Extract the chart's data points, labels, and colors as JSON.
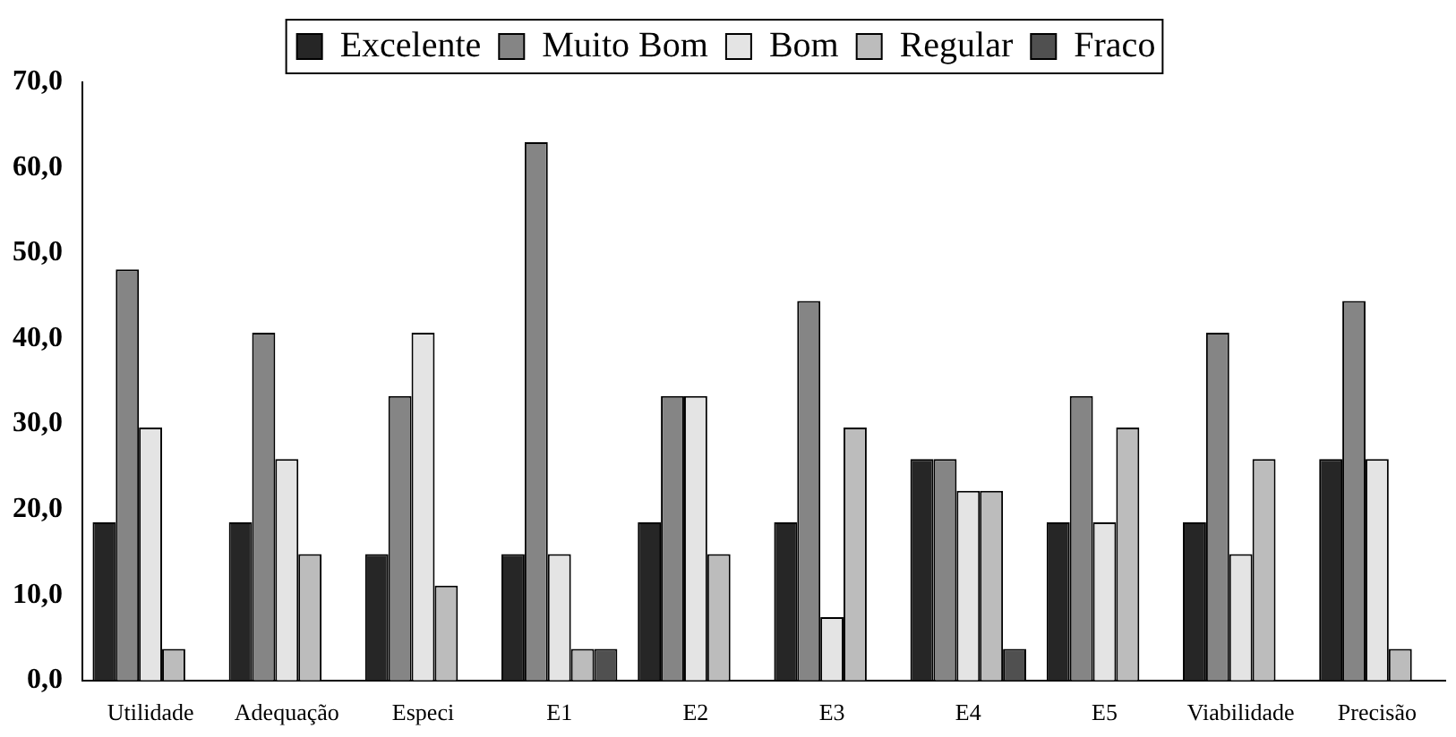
{
  "chart_data": {
    "type": "bar",
    "categories": [
      "Utilidade",
      "Adequação",
      "Especi",
      "E1",
      "E2",
      "E3",
      "E4",
      "E5",
      "Viabilidade",
      "Precisão"
    ],
    "series": [
      {
        "name": "Excelente",
        "color": "#262626",
        "values": [
          18.5,
          18.5,
          14.8,
          14.8,
          18.5,
          18.5,
          25.9,
          18.5,
          18.5,
          25.9
        ]
      },
      {
        "name": "Muito Bom",
        "color": "#858585",
        "values": [
          48.1,
          40.7,
          33.3,
          63.0,
          33.3,
          44.4,
          25.9,
          33.3,
          40.7,
          44.4
        ]
      },
      {
        "name": "Bom",
        "color": "#e4e4e4",
        "values": [
          29.6,
          25.9,
          40.7,
          14.8,
          33.3,
          7.4,
          22.2,
          18.5,
          14.8,
          25.9
        ]
      },
      {
        "name": "Regular",
        "color": "#bcbcbc",
        "values": [
          3.7,
          14.8,
          11.1,
          3.7,
          14.8,
          29.6,
          22.2,
          29.6,
          25.9,
          3.7
        ]
      },
      {
        "name": "Fraco",
        "color": "#505050",
        "values": [
          0,
          0,
          0,
          3.7,
          0,
          0,
          3.7,
          0,
          0,
          0
        ]
      }
    ],
    "ylim": [
      0,
      70
    ],
    "yticks": [
      {
        "value": 0,
        "label": "0,0"
      },
      {
        "value": 10,
        "label": "10,0"
      },
      {
        "value": 20,
        "label": "20,0"
      },
      {
        "value": 30,
        "label": "30,0"
      },
      {
        "value": 40,
        "label": "40,0"
      },
      {
        "value": 50,
        "label": "50,0"
      },
      {
        "value": 60,
        "label": "60,0"
      },
      {
        "value": 70,
        "label": "70,0"
      }
    ],
    "grid": false,
    "legend": "top"
  }
}
